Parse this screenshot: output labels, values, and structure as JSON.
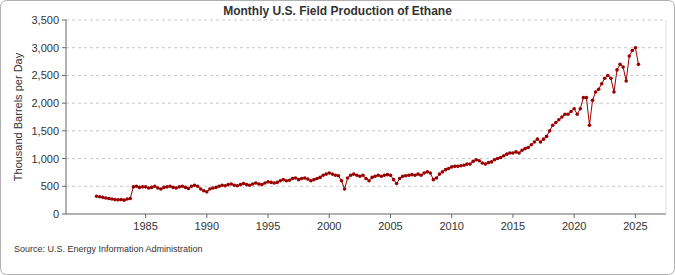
{
  "chart_data": {
    "type": "line",
    "title": "Monthly U.S. Field Production of Ethane",
    "y_label": "Thousand Barrels per Day",
    "source": "Source: U.S. Energy Information Administration",
    "color": "#990000",
    "marker": "circle",
    "line_style": "solid",
    "grid": true,
    "xlim": [
      1978.5,
      2027.5
    ],
    "xticks": [
      1985,
      1990,
      1995,
      2000,
      2005,
      2010,
      2015,
      2020,
      2025
    ],
    "ylim": [
      0,
      3500
    ],
    "yticks": [
      0,
      500,
      {
        "value": 1000,
        "label": "1,000"
      },
      {
        "value": 1500,
        "label": "1,500"
      },
      {
        "value": 2000,
        "label": "2,000"
      },
      {
        "value": 2500,
        "label": "2,500"
      },
      {
        "value": 3000,
        "label": "3,000"
      },
      {
        "value": 3500,
        "label": "3,500"
      }
    ],
    "x": [
      1981,
      1981.25,
      1981.5,
      1981.75,
      1982,
      1982.25,
      1982.5,
      1982.75,
      1983,
      1983.25,
      1983.5,
      1983.75,
      1984,
      1984.25,
      1984.5,
      1984.75,
      1985,
      1985.25,
      1985.5,
      1985.75,
      1986,
      1986.25,
      1986.5,
      1986.75,
      1987,
      1987.25,
      1987.5,
      1987.75,
      1988,
      1988.25,
      1988.5,
      1988.75,
      1989,
      1989.25,
      1989.5,
      1989.75,
      1990,
      1990.25,
      1990.5,
      1990.75,
      1991,
      1991.25,
      1991.5,
      1991.75,
      1992,
      1992.25,
      1992.5,
      1992.75,
      1993,
      1993.25,
      1993.5,
      1993.75,
      1994,
      1994.25,
      1994.5,
      1994.75,
      1995,
      1995.25,
      1995.5,
      1995.75,
      1996,
      1996.25,
      1996.5,
      1996.75,
      1997,
      1997.25,
      1997.5,
      1997.75,
      1998,
      1998.25,
      1998.5,
      1998.75,
      1999,
      1999.25,
      1999.5,
      1999.75,
      2000,
      2000.25,
      2000.5,
      2000.75,
      2001,
      2001.25,
      2001.5,
      2001.75,
      2002,
      2002.25,
      2002.5,
      2002.75,
      2003,
      2003.25,
      2003.5,
      2003.75,
      2004,
      2004.25,
      2004.5,
      2004.75,
      2005,
      2005.25,
      2005.5,
      2005.75,
      2006,
      2006.25,
      2006.5,
      2006.75,
      2007,
      2007.25,
      2007.5,
      2007.75,
      2008,
      2008.25,
      2008.5,
      2008.75,
      2009,
      2009.25,
      2009.5,
      2009.75,
      2010,
      2010.25,
      2010.5,
      2010.75,
      2011,
      2011.25,
      2011.5,
      2011.75,
      2012,
      2012.25,
      2012.5,
      2012.75,
      2013,
      2013.25,
      2013.5,
      2013.75,
      2014,
      2014.25,
      2014.5,
      2014.75,
      2015,
      2015.25,
      2015.5,
      2015.75,
      2016,
      2016.25,
      2016.5,
      2016.75,
      2017,
      2017.25,
      2017.5,
      2017.75,
      2018,
      2018.25,
      2018.5,
      2018.75,
      2019,
      2019.25,
      2019.5,
      2019.75,
      2020,
      2020.25,
      2020.5,
      2020.75,
      2021,
      2021.25,
      2021.5,
      2021.75,
      2022,
      2022.25,
      2022.5,
      2022.75,
      2023,
      2023.25,
      2023.5,
      2023.75,
      2024,
      2024.25,
      2024.5,
      2024.75,
      2025,
      2025.25
    ],
    "values": [
      320,
      310,
      300,
      290,
      280,
      270,
      260,
      255,
      260,
      250,
      270,
      280,
      490,
      500,
      480,
      490,
      490,
      470,
      480,
      500,
      470,
      450,
      480,
      490,
      500,
      480,
      470,
      490,
      500,
      480,
      460,
      500,
      520,
      500,
      450,
      420,
      400,
      450,
      470,
      480,
      500,
      520,
      510,
      530,
      540,
      520,
      510,
      530,
      550,
      530,
      520,
      540,
      560,
      540,
      530,
      560,
      580,
      570,
      560,
      570,
      600,
      620,
      600,
      610,
      640,
      650,
      620,
      640,
      650,
      630,
      600,
      620,
      640,
      660,
      700,
      720,
      740,
      720,
      700,
      690,
      600,
      450,
      650,
      700,
      720,
      700,
      680,
      700,
      640,
      600,
      660,
      680,
      700,
      680,
      700,
      710,
      700,
      620,
      550,
      640,
      680,
      690,
      700,
      710,
      700,
      720,
      700,
      740,
      760,
      740,
      620,
      650,
      720,
      760,
      800,
      820,
      850,
      860,
      860,
      870,
      880,
      900,
      900,
      950,
      980,
      960,
      920,
      900,
      930,
      940,
      980,
      1000,
      1020,
      1050,
      1080,
      1100,
      1100,
      1120,
      1100,
      1150,
      1180,
      1200,
      1250,
      1300,
      1350,
      1300,
      1350,
      1400,
      1500,
      1600,
      1650,
      1700,
      1750,
      1800,
      1800,
      1850,
      1900,
      1800,
      1900,
      2100,
      2100,
      1600,
      2050,
      2200,
      2250,
      2350,
      2450,
      2500,
      2450,
      2200,
      2600,
      2700,
      2650,
      2400,
      2850,
      2950,
      3000,
      2700
    ]
  }
}
